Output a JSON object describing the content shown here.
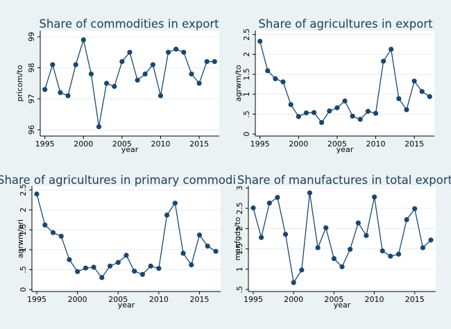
{
  "figure": {
    "background": "#eaf2f3",
    "plot_background": "#ffffff"
  },
  "chart_data": [
    {
      "type": "line",
      "title": "Share of commodities in export",
      "xlabel": "year",
      "ylabel": "pricom/to",
      "x": [
        1995,
        1996,
        1997,
        1998,
        1999,
        2000,
        2001,
        2002,
        2003,
        2004,
        2005,
        2006,
        2007,
        2008,
        2009,
        2010,
        2011,
        2012,
        2013,
        2014,
        2015,
        2016,
        2017
      ],
      "series": [
        {
          "values": [
            97.3,
            98.1,
            97.2,
            97.1,
            98.1,
            98.9,
            97.8,
            96.1,
            97.5,
            97.4,
            98.2,
            98.5,
            97.6,
            97.8,
            98.1,
            97.1,
            98.5,
            98.6,
            98.5,
            97.8,
            97.5,
            98.2,
            98.2
          ],
          "color": "#1a476f"
        }
      ],
      "xlim": [
        1994.4,
        2017.6
      ],
      "ylim": [
        95.8,
        99.2
      ],
      "xticks": [
        1995,
        2000,
        2005,
        2010,
        2015
      ],
      "xtick_labels": [
        "1995",
        "2000",
        "2005",
        "2010",
        "2015"
      ],
      "yticks": [
        96,
        97,
        98,
        99
      ],
      "ytick_labels": [
        "96",
        "97",
        "98",
        "99"
      ],
      "grid": "horizontal"
    },
    {
      "type": "line",
      "title": "Share of agricultures in export",
      "xlabel": "year",
      "ylabel": "agrwm/to",
      "x": [
        1995,
        1996,
        1997,
        1998,
        1999,
        2000,
        2001,
        2002,
        2003,
        2004,
        2005,
        2006,
        2007,
        2008,
        2009,
        2010,
        2011,
        2012,
        2013,
        2014,
        2015,
        2016,
        2017
      ],
      "series": [
        {
          "values": [
            2.33,
            1.59,
            1.39,
            1.31,
            0.74,
            0.44,
            0.53,
            0.54,
            0.29,
            0.58,
            0.66,
            0.83,
            0.45,
            0.37,
            0.57,
            0.52,
            1.83,
            2.13,
            0.89,
            0.61,
            1.33,
            1.07,
            0.94
          ],
          "color": "#1a476f"
        }
      ],
      "xlim": [
        1994.4,
        2017.6
      ],
      "ylim": [
        -0.05,
        2.6
      ],
      "xticks": [
        1995,
        2000,
        2005,
        2010,
        2015
      ],
      "xtick_labels": [
        "1995",
        "2000",
        "2005",
        "2010",
        "2015"
      ],
      "yticks": [
        0,
        0.5,
        1,
        1.5,
        2,
        2.5
      ],
      "ytick_labels": [
        "0",
        ".5",
        "1",
        "1.5",
        "2",
        "2.5"
      ],
      "grid": "horizontal"
    },
    {
      "type": "line",
      "title": "Share of agricultures in primary commodi",
      "xlabel": "year",
      "ylabel": "agrwm/pri",
      "x": [
        1995,
        1996,
        1997,
        1998,
        1999,
        2000,
        2001,
        2002,
        2003,
        2004,
        2005,
        2006,
        2007,
        2008,
        2009,
        2010,
        2011,
        2012,
        2013,
        2014,
        2015,
        2016,
        2017
      ],
      "series": [
        {
          "values": [
            2.4,
            1.62,
            1.43,
            1.34,
            0.75,
            0.45,
            0.54,
            0.56,
            0.3,
            0.59,
            0.68,
            0.86,
            0.46,
            0.38,
            0.59,
            0.53,
            1.87,
            2.17,
            0.91,
            0.62,
            1.37,
            1.09,
            0.96
          ],
          "color": "#1a476f"
        }
      ],
      "xlim": [
        1994.4,
        2017.6
      ],
      "ylim": [
        -0.05,
        2.6
      ],
      "xticks": [
        1995,
        2000,
        2005,
        2010,
        2015
      ],
      "xtick_labels": [
        "1995",
        "2000",
        "2005",
        "2010",
        "2015"
      ],
      "yticks": [
        0,
        0.5,
        1,
        1.5,
        2,
        2.5
      ],
      "ytick_labels": [
        "0",
        ".5",
        "1",
        "1.5",
        "2",
        "2.5"
      ],
      "grid": "horizontal"
    },
    {
      "type": "line",
      "title": "Share of manufactures in total export",
      "xlabel": "year",
      "ylabel": "manfgds/to",
      "x": [
        1995,
        1996,
        1997,
        1998,
        1999,
        2000,
        2001,
        2002,
        2003,
        2004,
        2005,
        2006,
        2007,
        2008,
        2009,
        2010,
        2011,
        2012,
        2013,
        2014,
        2015,
        2016,
        2017
      ],
      "series": [
        {
          "values": [
            2.51,
            1.78,
            2.63,
            2.77,
            1.86,
            0.67,
            0.98,
            2.88,
            1.53,
            2.02,
            1.26,
            1.06,
            1.49,
            2.14,
            1.83,
            2.78,
            1.45,
            1.32,
            1.37,
            2.22,
            2.49,
            1.53,
            1.72
          ],
          "color": "#1a476f"
        }
      ],
      "xlim": [
        1994.4,
        2017.6
      ],
      "ylim": [
        0.45,
        3.05
      ],
      "xticks": [
        1995,
        2000,
        2005,
        2010,
        2015
      ],
      "xtick_labels": [
        "1995",
        "2000",
        "2005",
        "2010",
        "2015"
      ],
      "yticks": [
        0.5,
        1,
        1.5,
        2,
        2.5,
        3
      ],
      "ytick_labels": [
        ".5",
        "1",
        "1.5",
        "2",
        "2.5",
        "3"
      ],
      "grid": "horizontal"
    }
  ]
}
